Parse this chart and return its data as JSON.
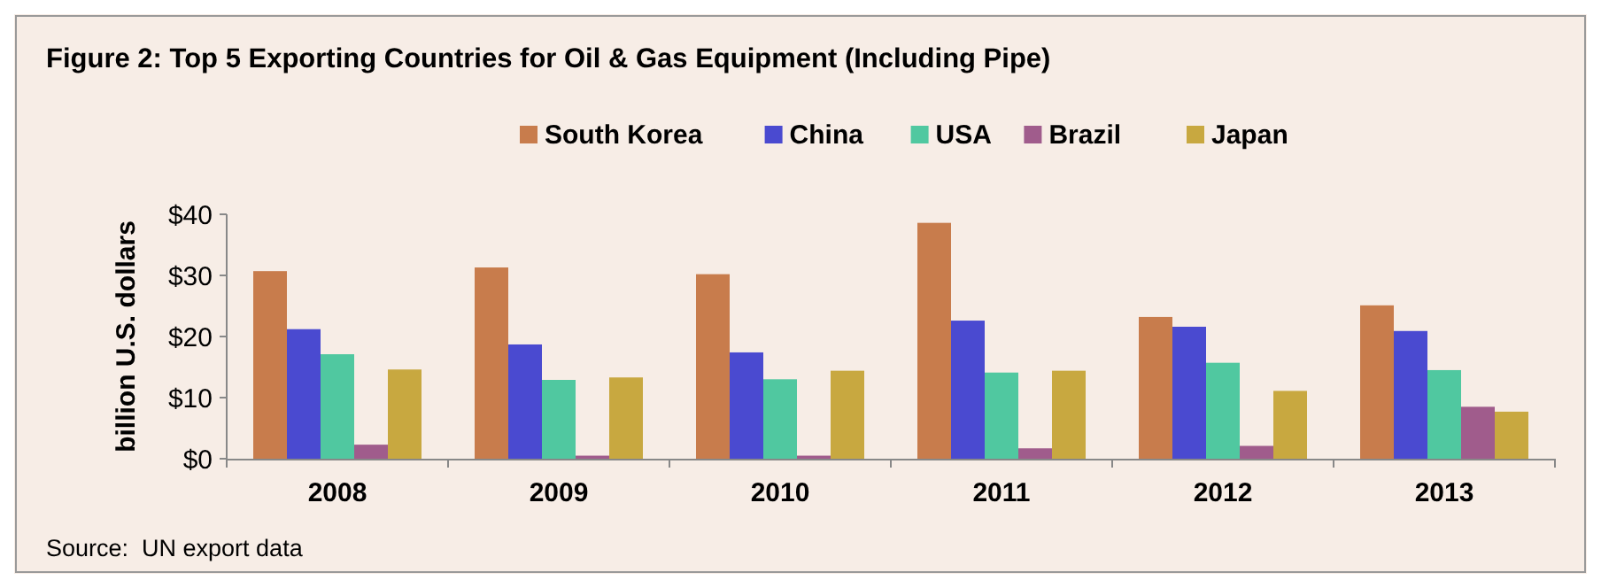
{
  "chart_data": {
    "type": "bar",
    "title": "Figure 2: Top 5 Exporting Countries for Oil & Gas Equipment (Including Pipe)",
    "ylabel": "billion U.S. dollars",
    "categories": [
      "2008",
      "2009",
      "2010",
      "2011",
      "2012",
      "2013"
    ],
    "series": [
      {
        "name": "South Korea",
        "color": "#c87c4c",
        "values": [
          30.7,
          31.3,
          30.2,
          38.6,
          23.2,
          25.1
        ]
      },
      {
        "name": "China",
        "color": "#4a4ad0",
        "values": [
          21.2,
          18.7,
          17.4,
          22.6,
          21.6,
          20.9
        ]
      },
      {
        "name": "USA",
        "color": "#50c8a0",
        "values": [
          17.1,
          12.9,
          13.0,
          14.1,
          15.7,
          14.5
        ]
      },
      {
        "name": "Brazil",
        "color": "#a05c8c",
        "values": [
          2.3,
          0.5,
          0.5,
          1.7,
          2.1,
          8.5
        ]
      },
      {
        "name": "Japan",
        "color": "#c8a840",
        "values": [
          14.6,
          13.3,
          14.4,
          14.4,
          11.1,
          7.7
        ]
      }
    ],
    "ylim": [
      0,
      40
    ],
    "yticks": [
      {
        "value": 0,
        "label": "$0"
      },
      {
        "value": 10,
        "label": "$10"
      },
      {
        "value": 20,
        "label": "$20"
      },
      {
        "value": 30,
        "label": "$30"
      },
      {
        "value": 40,
        "label": "$40"
      }
    ],
    "grid": false,
    "legend": "top",
    "annotations": [
      "Source:  UN export data"
    ]
  }
}
